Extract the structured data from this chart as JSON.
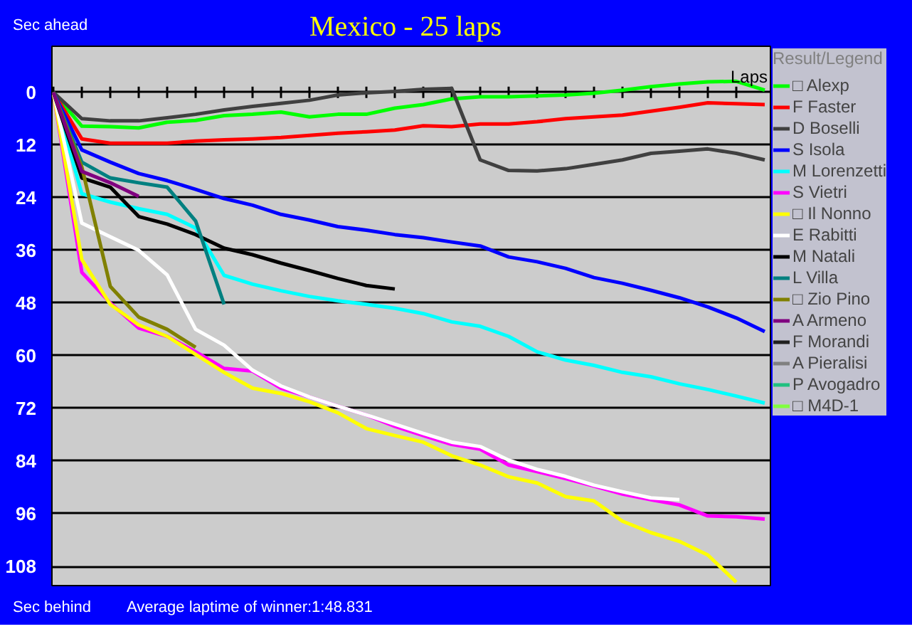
{
  "chart_data": {
    "type": "line",
    "title": "Mexico - 25 laps",
    "ylabel": "Sec ahead",
    "xlabel": "Laps",
    "legend_title": "Result/Legend",
    "annotations": [
      "Sec behind",
      "Average laptime of winner:1:48.831"
    ],
    "categories": [
      null,
      null,
      null,
      null,
      null,
      null,
      null,
      null,
      null,
      null,
      null,
      null,
      null,
      null,
      null,
      null,
      null,
      null,
      null,
      null,
      null,
      null,
      null,
      null,
      null,
      null
    ],
    "ylim": [
      112.7,
      -10.5
    ],
    "yticks": [
      0,
      12,
      24,
      36,
      48,
      60,
      72,
      84,
      96,
      108
    ],
    "grid": "y",
    "legend": "right",
    "tick_labels": "y",
    "line_style": "solid",
    "marker": "none",
    "series": [
      {
        "name": "□ Alexp",
        "color": "#00ff00",
        "values": [
          0,
          7.7,
          7.8,
          8.1,
          6.8,
          6.4,
          5.3,
          5,
          4.5,
          5.6,
          5,
          5,
          3.6,
          2.8,
          1.5,
          1,
          1,
          0.8,
          0.6,
          0.2,
          -0.5,
          -1.3,
          -1.9,
          -2.4,
          -2.5,
          -0.5
        ]
      },
      {
        "name": "F Faster",
        "color": "#ff0000",
        "values": [
          0,
          10.6,
          11.6,
          11.6,
          11.6,
          11.1,
          10.8,
          10.6,
          10.3,
          9.8,
          9.3,
          9,
          8.6,
          7.6,
          7.8,
          7.2,
          7.2,
          6.7,
          6,
          5.6,
          5.2,
          4.3,
          3.4,
          2.4,
          2.6,
          2.8
        ]
      },
      {
        "name": "D Boselli",
        "color": "#404040",
        "values": [
          0,
          6,
          6.5,
          6.5,
          5.8,
          5,
          4,
          3.2,
          2.5,
          1.8,
          0.6,
          0.1,
          -0.2,
          -0.7,
          -0.9,
          15.4,
          17.8,
          17.9,
          17.4,
          16.4,
          15.4,
          13.9,
          13.4,
          12.9,
          13.9,
          15.4
        ]
      },
      {
        "name": "S Isola",
        "color": "#0000ff",
        "values": [
          0,
          13.1,
          15.9,
          18.5,
          20.1,
          22.1,
          24.2,
          25.7,
          27.8,
          29.1,
          30.6,
          31.4,
          32.4,
          33.1,
          34.1,
          35,
          37.5,
          38.6,
          40.1,
          42.2,
          43.5,
          45.1,
          46.8,
          48.9,
          51.4,
          54.5
        ]
      },
      {
        "name": "M Lorenzetti",
        "color": "#00ffff",
        "values": [
          0,
          23.1,
          25,
          26.5,
          27.8,
          30.9,
          41.7,
          43.7,
          45.2,
          46.5,
          47.5,
          48.3,
          49.2,
          50.4,
          52.3,
          53.3,
          55.6,
          59.1,
          61,
          62.2,
          63.8,
          64.8,
          66.4,
          67.7,
          69.2,
          70.8
        ]
      },
      {
        "name": "S Vietri",
        "color": "#ff00ff",
        "values": [
          0,
          41,
          48,
          53.7,
          55.6,
          59.1,
          62.9,
          63.5,
          67.4,
          69.4,
          71.5,
          73.5,
          76.1,
          78.2,
          80.2,
          81.3,
          84.9,
          86.4,
          88,
          89.7,
          91.5,
          92.8,
          94,
          96.5,
          96.7,
          97.2
        ]
      },
      {
        "name": "□ Il Nonno",
        "color": "#ffff00",
        "values": [
          0,
          38.1,
          48.3,
          53,
          55.6,
          59.7,
          63.8,
          67.4,
          68.6,
          70.5,
          73,
          76.6,
          78.2,
          79.7,
          82.8,
          84.9,
          87.6,
          89,
          92.1,
          93.1,
          97.7,
          100.3,
          102.3,
          105.4,
          111.6,
          null
        ]
      },
      {
        "name": "E Rabitti",
        "color": "#ffffff",
        "values": [
          0,
          29.8,
          32.9,
          36,
          41.6,
          54,
          57.6,
          63.3,
          66.9,
          69.4,
          71.5,
          73.5,
          75.6,
          77.7,
          79.7,
          80.7,
          83.8,
          85.9,
          87.5,
          89.5,
          91,
          92.4,
          92.8,
          null,
          null,
          null
        ]
      },
      {
        "name": "M Natali",
        "color": "#000000",
        "values": [
          0,
          19.5,
          21.6,
          28.3,
          30,
          32.4,
          35.5,
          37,
          38.9,
          40.6,
          42.4,
          44,
          44.8,
          null,
          null,
          null,
          null,
          null,
          null,
          null,
          null,
          null,
          null,
          null,
          null,
          null
        ]
      },
      {
        "name": "L Villa",
        "color": "#008080",
        "values": [
          0,
          15.9,
          19.5,
          20.6,
          21.6,
          29.3,
          48.3,
          null,
          null,
          null,
          null,
          null,
          null,
          null,
          null,
          null,
          null,
          null,
          null,
          null,
          null,
          null,
          null,
          null,
          null,
          null
        ]
      },
      {
        "name": "□ Zio Pino",
        "color": "#808000",
        "values": [
          0,
          17,
          44.2,
          51.2,
          54,
          58.1,
          null,
          null,
          null,
          null,
          null,
          null,
          null,
          null,
          null,
          null,
          null,
          null,
          null,
          null,
          null,
          null,
          null,
          null,
          null,
          null
        ]
      },
      {
        "name": "A Armeno",
        "color": "#800080",
        "values": [
          0,
          18,
          20.6,
          23.7,
          null,
          null,
          null,
          null,
          null,
          null,
          null,
          null,
          null,
          null,
          null,
          null,
          null,
          null,
          null,
          null,
          null,
          null,
          null,
          null,
          null,
          null
        ]
      },
      {
        "name": "F Morandi",
        "color": "#202020",
        "values": [
          null,
          null,
          null,
          null,
          null,
          null,
          null,
          null,
          null,
          null,
          null,
          null,
          null,
          null,
          null,
          null,
          null,
          null,
          null,
          null,
          null,
          null,
          null,
          null,
          null,
          null
        ]
      },
      {
        "name": "A Pieralisi",
        "color": "#808080",
        "values": [
          null,
          null,
          null,
          null,
          null,
          null,
          null,
          null,
          null,
          null,
          null,
          null,
          null,
          null,
          null,
          null,
          null,
          null,
          null,
          null,
          null,
          null,
          null,
          null,
          null,
          null
        ]
      },
      {
        "name": "P Avogadro",
        "color": "#20c080",
        "values": [
          null,
          null,
          null,
          null,
          null,
          null,
          null,
          null,
          null,
          null,
          null,
          null,
          null,
          null,
          null,
          null,
          null,
          null,
          null,
          null,
          null,
          null,
          null,
          null,
          null,
          null
        ]
      },
      {
        "name": "□ M4D-1",
        "color": "#80ff40",
        "values": [
          null,
          null,
          null,
          null,
          null,
          null,
          null,
          null,
          null,
          null,
          null,
          null,
          null,
          null,
          null,
          null,
          null,
          null,
          null,
          null,
          null,
          null,
          null,
          null,
          null,
          null
        ]
      }
    ]
  }
}
